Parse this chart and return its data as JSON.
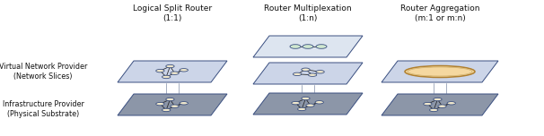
{
  "fig_width": 6.06,
  "fig_height": 1.52,
  "dpi": 100,
  "bg_color": "#ffffff",
  "col_titles": [
    "Logical Split Router\n(1:1)",
    "Router Multiplexation\n(1:n)",
    "Router Aggregation\n(m:1 or m:n)"
  ],
  "row_labels": [
    "Virtual Network Provider\n(Network Slices)",
    "Infrastructure Provider\n(Physical Substrate)"
  ],
  "col_title_fontsize": 6.5,
  "row_label_fontsize": 5.8,
  "plane_light": "#ccd5e8",
  "plane_mid": "#b8c4d8",
  "plane_dark": "#8c96a8",
  "plane_lighter": "#dde5f0",
  "plane_border": "#3a4f80",
  "node_fill": "#f0e8cc",
  "node_fill_green": "#d0e8d0",
  "node_border": "#3a4f80",
  "line_color": "#222222",
  "aggregation_fill": "#f5d8a0",
  "aggregation_border": "#b08030"
}
